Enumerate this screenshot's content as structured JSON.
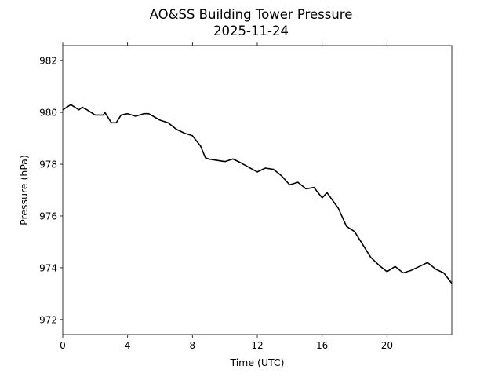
{
  "chart_data": {
    "type": "line",
    "title": "AO&SS Building Tower Pressure",
    "subtitle": "2025-11-24",
    "xlabel": "Time (UTC)",
    "ylabel": "Pressure (hPa)",
    "xlim": [
      0,
      24
    ],
    "ylim": [
      971.42,
      982.58
    ],
    "xticks": [
      0,
      4,
      8,
      12,
      16,
      20
    ],
    "xtick_labels": [
      "0",
      "4",
      "8",
      "12",
      "16",
      "20"
    ],
    "yticks": [
      972,
      974,
      976,
      978,
      980,
      982
    ],
    "ytick_labels": [
      "972",
      "974",
      "976",
      "978",
      "980",
      "982"
    ],
    "grid": false,
    "series": [
      {
        "name": "Pressure",
        "color": "#000000",
        "x": [
          0,
          0.5,
          1,
          1.2,
          1.5,
          2,
          2.5,
          2.6,
          3,
          3.3,
          3.6,
          4,
          4.5,
          5,
          5.3,
          6,
          6.5,
          7,
          7.5,
          8,
          8.5,
          8.8,
          9,
          10,
          10.5,
          11,
          12,
          12.5,
          13,
          13.5,
          14,
          14.5,
          15,
          15.5,
          16,
          16.3,
          17,
          17.5,
          18,
          18.5,
          19,
          19.5,
          20,
          20.5,
          21,
          21.5,
          22,
          22.5,
          23,
          23.5,
          24
        ],
        "y": [
          980.1,
          980.3,
          980.1,
          980.2,
          980.1,
          979.9,
          979.9,
          980.0,
          979.6,
          979.6,
          979.9,
          979.95,
          979.85,
          979.95,
          979.95,
          979.7,
          979.6,
          979.35,
          979.2,
          979.1,
          978.7,
          978.25,
          978.2,
          978.1,
          978.2,
          978.05,
          977.7,
          977.85,
          977.8,
          977.55,
          977.2,
          977.3,
          977.05,
          977.1,
          976.7,
          976.9,
          976.3,
          975.6,
          975.4,
          974.9,
          974.4,
          974.1,
          973.85,
          974.05,
          973.8,
          973.9,
          974.05,
          974.2,
          973.95,
          973.8,
          973.4
        ]
      }
    ]
  }
}
